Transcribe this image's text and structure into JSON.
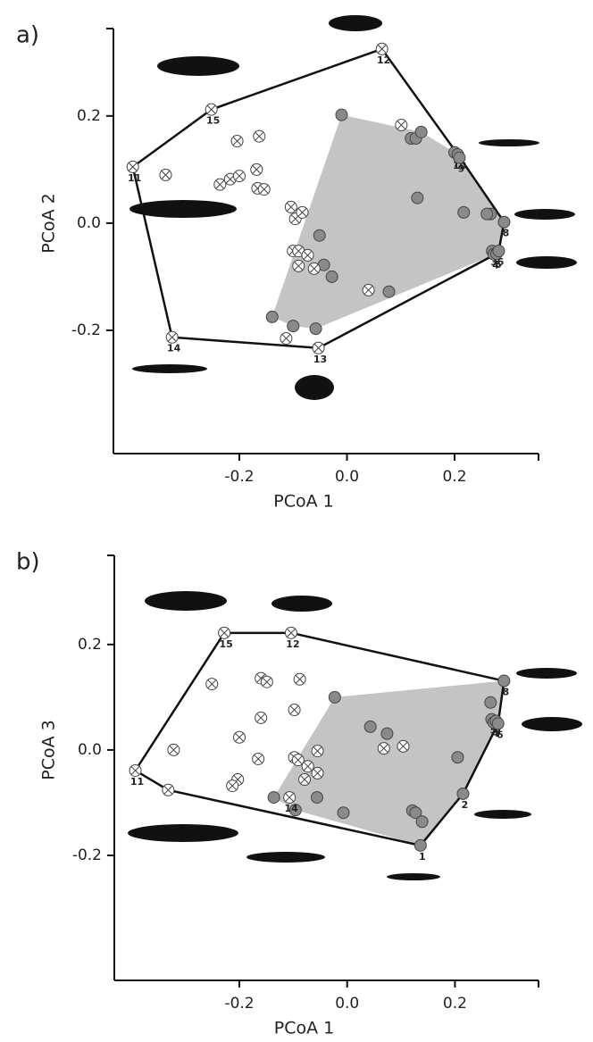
{
  "chart_data": [
    {
      "type": "scatter",
      "panel_label": "a)",
      "x_label": "PCoA 1",
      "y_label": "PCoA 2",
      "xlim": [
        -0.434,
        0.356
      ],
      "ylim": [
        -0.43,
        0.363
      ],
      "xticks": [
        -0.2,
        {
          "value": 0,
          "label": "0.0"
        },
        0.2
      ],
      "yticks": [
        -0.2,
        {
          "value": 0,
          "label": "0.0"
        },
        0.2
      ],
      "series": [
        {
          "marker": "filled",
          "color": "#8a8a8a",
          "hull_color": "#c4c4c4",
          "x": [
            -0.01,
            0.119,
            0.128,
            0.138,
            0.131,
            0.2,
            0.206,
            0.209,
            0.217,
            0.292,
            0.267,
            0.26,
            0.27,
            0.273,
            0.278,
            0.282,
            -0.051,
            -0.043,
            -0.028,
            0.078,
            -0.139,
            -0.1,
            -0.058
          ],
          "values": [
            0.202,
            0.158,
            0.158,
            0.17,
            0.047,
            0.132,
            0.128,
            0.122,
            0.02,
            0.002,
            0.017,
            0.017,
            -0.052,
            -0.058,
            -0.057,
            -0.052,
            -0.023,
            -0.078,
            -0.1,
            -0.128,
            -0.175,
            -0.192,
            -0.197
          ],
          "labels": [
            null,
            null,
            null,
            null,
            null,
            "7",
            "10",
            "9",
            null,
            "8",
            null,
            null,
            "3",
            "4",
            "5",
            "6",
            null,
            null,
            null,
            null,
            null,
            null,
            null
          ]
        },
        {
          "marker": "crossed",
          "color": "#ffffff",
          "x": [
            0.065,
            -0.252,
            -0.398,
            -0.325,
            -0.053,
            -0.337,
            -0.236,
            -0.217,
            -0.2,
            -0.204,
            -0.163,
            -0.168,
            -0.166,
            -0.154,
            -0.104,
            -0.096,
            -0.083,
            -0.1,
            -0.09,
            -0.073,
            -0.09,
            -0.061,
            -0.113,
            0.04,
            0.101
          ],
          "values": [
            0.325,
            0.212,
            0.105,
            -0.213,
            -0.233,
            0.09,
            0.072,
            0.082,
            0.088,
            0.153,
            0.162,
            0.1,
            0.065,
            0.063,
            0.03,
            0.008,
            0.02,
            -0.052,
            -0.052,
            -0.06,
            -0.08,
            -0.085,
            -0.215,
            -0.125,
            0.183
          ],
          "labels": [
            "12",
            "15",
            "11",
            "14",
            "13",
            null,
            null,
            null,
            null,
            null,
            null,
            null,
            null,
            null,
            null,
            null,
            null,
            null,
            null,
            null,
            null,
            null,
            null,
            null,
            null
          ]
        }
      ]
    },
    {
      "type": "scatter",
      "panel_label": "b)",
      "x_label": "PCoA 1",
      "y_label": "PCoA 3",
      "xlim": [
        -0.432,
        0.355
      ],
      "ylim": [
        -0.437,
        0.369
      ],
      "xticks": [
        -0.2,
        {
          "value": 0,
          "label": "0.0"
        },
        0.2
      ],
      "yticks": [
        -0.2,
        {
          "value": 0,
          "label": "0.0"
        },
        0.2
      ],
      "series": [
        {
          "marker": "filled",
          "color": "#8a8a8a",
          "hull_color": "#c4c4c4",
          "x": [
            0.291,
            0.266,
            0.268,
            0.272,
            0.276,
            0.28,
            -0.023,
            0.043,
            0.074,
            0.205,
            0.215,
            0.136,
            0.121,
            0.127,
            0.139,
            -0.136,
            -0.096,
            -0.056,
            -0.007
          ],
          "values": [
            0.131,
            0.09,
            0.058,
            0.052,
            0.055,
            0.05,
            0.1,
            0.044,
            0.031,
            -0.014,
            -0.083,
            -0.181,
            -0.115,
            -0.119,
            -0.136,
            -0.09,
            -0.114,
            -0.09,
            -0.119
          ],
          "labels": [
            "8",
            null,
            "5",
            "4",
            "3",
            "6",
            null,
            null,
            null,
            null,
            "2",
            "1",
            null,
            null,
            null,
            null,
            null,
            null,
            null
          ]
        },
        {
          "marker": "crossed",
          "color": "#ffffff",
          "x": [
            -0.228,
            -0.104,
            -0.393,
            -0.107,
            -0.251,
            -0.322,
            -0.332,
            -0.16,
            -0.149,
            -0.088,
            -0.16,
            -0.098,
            -0.2,
            -0.165,
            -0.203,
            -0.213,
            -0.098,
            -0.091,
            -0.073,
            -0.055,
            -0.055,
            -0.079,
            0.068,
            0.104
          ],
          "values": [
            0.222,
            0.222,
            -0.039,
            -0.09,
            0.125,
            0.0,
            -0.076,
            0.136,
            0.129,
            0.134,
            0.061,
            0.076,
            0.024,
            -0.017,
            -0.056,
            -0.068,
            -0.014,
            -0.019,
            -0.031,
            -0.002,
            -0.044,
            -0.056,
            0.003,
            0.007
          ],
          "labels": [
            "15",
            "12",
            "11",
            "14",
            null,
            null,
            null,
            null,
            null,
            null,
            null,
            null,
            null,
            null,
            null,
            null,
            null,
            null,
            null,
            null,
            null,
            null,
            null,
            null
          ]
        }
      ]
    }
  ]
}
